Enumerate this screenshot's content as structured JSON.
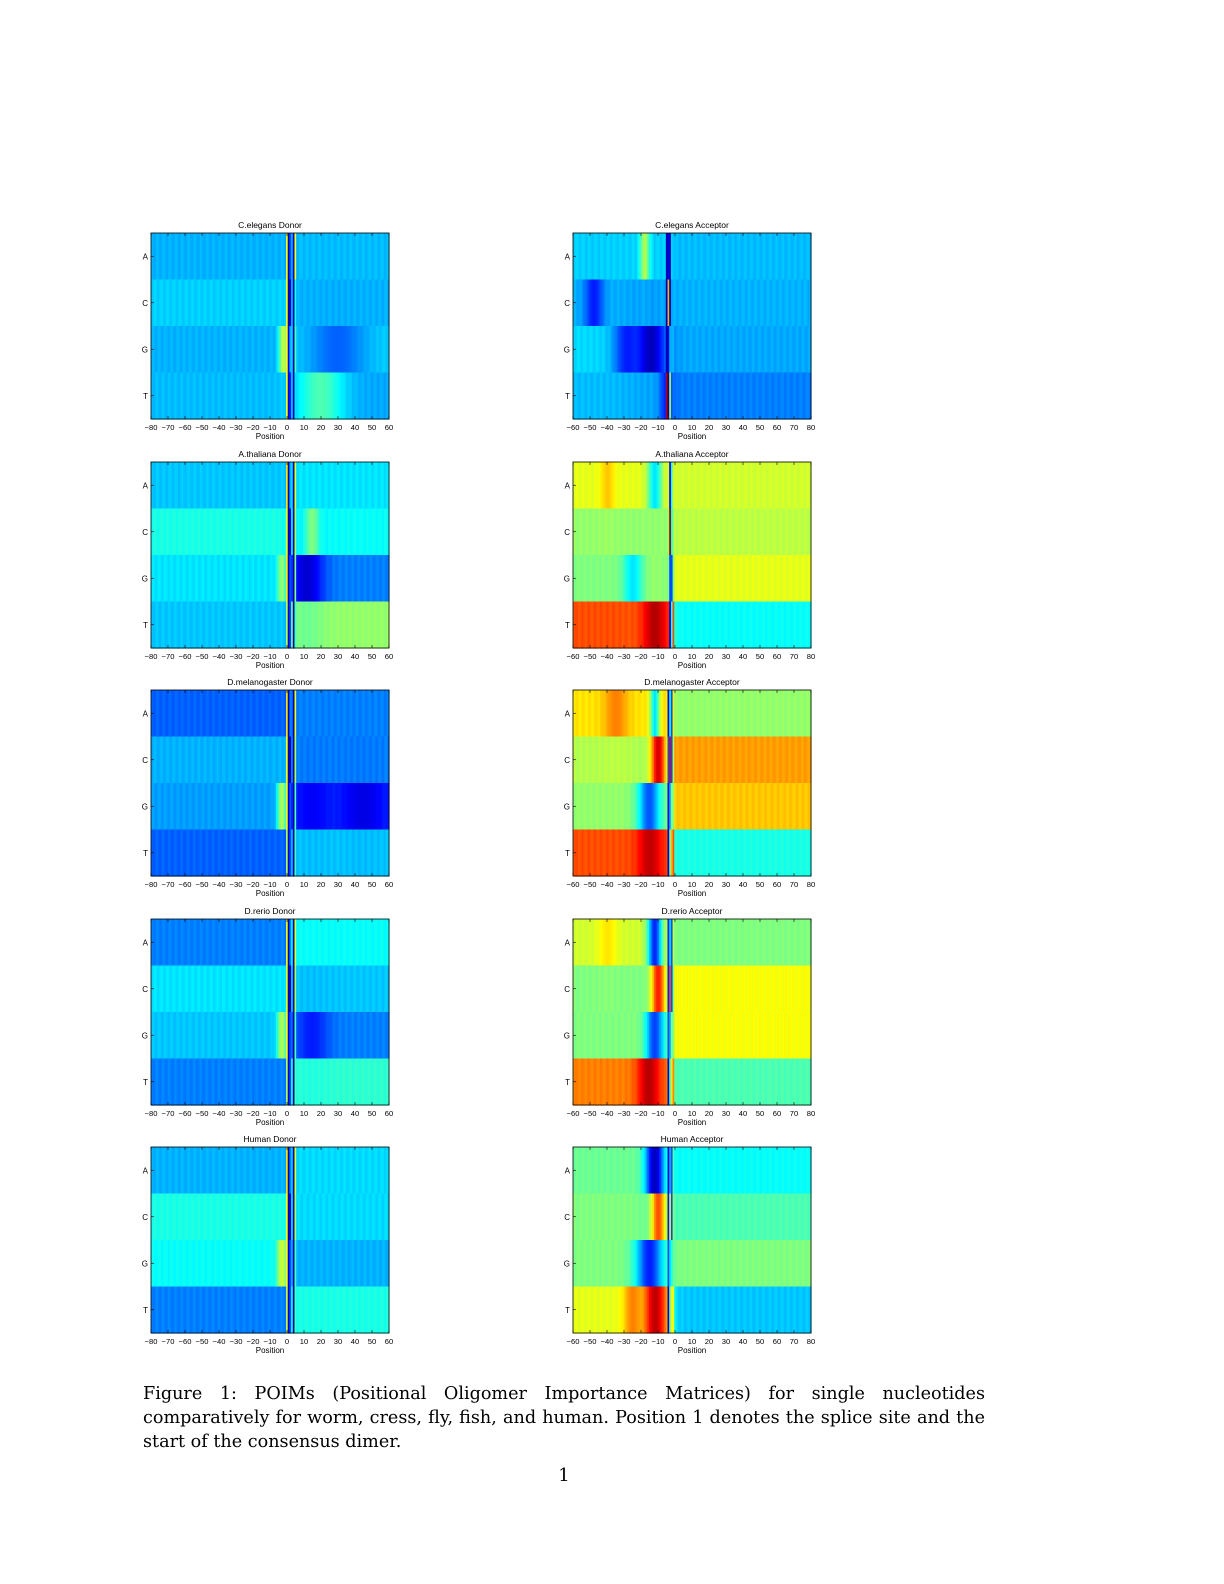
{
  "figure": {
    "caption": "Figure 1: POIMs (Positional Oligomer Importance Matrices) for single nucleotides comparatively for worm, cress, fly, fish, and human.  Position 1 denotes the splice site and the start of the consensus dimer.",
    "page_number": "1"
  },
  "chart_data": [
    {
      "type": "heatmap",
      "title": "C.elegans Donor",
      "xlabel": "Position",
      "ylabel": "",
      "yticks": [
        "A",
        "C",
        "G",
        "T"
      ],
      "xticks": [
        -80,
        -70,
        -60,
        -50,
        -40,
        -30,
        -20,
        -10,
        0,
        10,
        20,
        30,
        40,
        50,
        60
      ],
      "xlim": [
        -80,
        60
      ],
      "base": [
        [
          0.3,
          0.31
        ],
        [
          0.33,
          0.3
        ],
        [
          0.3,
          0.33
        ],
        [
          0.31,
          0.29
        ]
      ],
      "stripes": [
        {
          "x": 0,
          "w": 1,
          "v": [
            0.62,
            0.62,
            0.62,
            0.62
          ]
        },
        {
          "x": 1,
          "w": 1,
          "v": [
            0.05,
            0.05,
            0.12,
            0.1
          ]
        },
        {
          "x": 2,
          "w": 1,
          "v": [
            0.2,
            0.08,
            0.3,
            0.15
          ]
        },
        {
          "x": 4,
          "w": 1,
          "v": [
            0.1,
            0.05,
            0.05,
            0.05
          ]
        },
        {
          "x": 5,
          "w": 1,
          "v": [
            0.62,
            0.4,
            0.45,
            0.35
          ]
        }
      ],
      "blobs": [
        {
          "x": -2,
          "row": 2,
          "v": 0.58,
          "sx": 2,
          "sy": 0.3
        },
        {
          "x": 30,
          "row": 2,
          "v": 0.22,
          "sx": 12,
          "sy": 0.4
        },
        {
          "x": 20,
          "row": 3,
          "v": 0.45,
          "sx": 10,
          "sy": 0.3
        }
      ]
    },
    {
      "type": "heatmap",
      "title": "C.elegans Acceptor",
      "xlabel": "Position",
      "ylabel": "",
      "yticks": [
        "A",
        "C",
        "G",
        "T"
      ],
      "xticks": [
        -60,
        -50,
        -40,
        -30,
        -20,
        -10,
        0,
        10,
        20,
        30,
        40,
        50,
        60,
        70,
        80
      ],
      "xlim": [
        -60,
        80
      ],
      "base": [
        [
          0.33,
          0.31
        ],
        [
          0.3,
          0.3
        ],
        [
          0.34,
          0.29
        ],
        [
          0.31,
          0.25
        ]
      ],
      "stripes": [
        {
          "x": -5,
          "w": 1,
          "v": [
            0.05,
            0.05,
            0.05,
            0.95
          ]
        },
        {
          "x": -4,
          "w": 1,
          "v": [
            0.1,
            0.7,
            0.1,
            0.05
          ]
        },
        {
          "x": -3,
          "w": 1,
          "v": [
            0.05,
            0.05,
            0.3,
            0.55
          ]
        }
      ],
      "blobs": [
        {
          "x": -15,
          "row": 2,
          "v": 0.05,
          "sx": 7,
          "sy": 0.45
        },
        {
          "x": -48,
          "row": 1,
          "v": 0.15,
          "sx": 4,
          "sy": 0.35
        },
        {
          "x": -28,
          "row": 2,
          "v": 0.15,
          "sx": 6,
          "sy": 0.4
        },
        {
          "x": -18,
          "row": 0,
          "v": 0.55,
          "sx": 2,
          "sy": 0.4
        },
        {
          "x": -5,
          "row": 3,
          "v": 0.15,
          "sx": 3,
          "sy": 0.3
        }
      ]
    },
    {
      "type": "heatmap",
      "title": "A.thaliana Donor",
      "xlabel": "Position",
      "ylabel": "",
      "yticks": [
        "A",
        "C",
        "G",
        "T"
      ],
      "xticks": [
        -80,
        -70,
        -60,
        -50,
        -40,
        -30,
        -20,
        -10,
        0,
        10,
        20,
        30,
        40,
        50,
        60
      ],
      "xlim": [
        -80,
        60
      ],
      "base": [
        [
          0.32,
          0.35
        ],
        [
          0.4,
          0.38
        ],
        [
          0.35,
          0.25
        ],
        [
          0.32,
          0.52
        ]
      ],
      "stripes": [
        {
          "x": 0,
          "w": 1,
          "v": [
            0.65,
            0.6,
            0.65,
            0.55
          ]
        },
        {
          "x": 1,
          "w": 1,
          "v": [
            0.05,
            0.05,
            0.08,
            0.08
          ]
        },
        {
          "x": 2,
          "w": 1,
          "v": [
            0.3,
            0.1,
            0.2,
            0.2
          ]
        },
        {
          "x": 4,
          "w": 1,
          "v": [
            0.05,
            0.05,
            0.05,
            0.05
          ]
        },
        {
          "x": 5,
          "w": 1,
          "v": [
            0.6,
            0.55,
            0.5,
            0.45
          ]
        }
      ],
      "blobs": [
        {
          "x": 12,
          "row": 2,
          "v": 0.08,
          "sx": 7,
          "sy": 0.45
        },
        {
          "x": -3,
          "row": 2,
          "v": 0.52,
          "sx": 2,
          "sy": 0.3
        },
        {
          "x": 15,
          "row": 1,
          "v": 0.5,
          "sx": 3,
          "sy": 0.3
        }
      ]
    },
    {
      "type": "heatmap",
      "title": "A.thaliana Acceptor",
      "xlabel": "Position",
      "ylabel": "",
      "yticks": [
        "A",
        "C",
        "G",
        "T"
      ],
      "xticks": [
        -60,
        -50,
        -40,
        -30,
        -20,
        -10,
        0,
        10,
        20,
        30,
        40,
        50,
        60,
        70,
        80
      ],
      "xlim": [
        -60,
        80
      ],
      "base": [
        [
          0.6,
          0.58
        ],
        [
          0.52,
          0.56
        ],
        [
          0.5,
          0.6
        ],
        [
          0.8,
          0.38
        ]
      ],
      "stripes": [
        {
          "x": -3,
          "w": 1,
          "v": [
            0.1,
            0.98,
            0.2,
            0.1
          ]
        },
        {
          "x": -2,
          "w": 1,
          "v": [
            0.4,
            0.4,
            0.2,
            0.4
          ]
        }
      ],
      "blobs": [
        {
          "x": -12,
          "row": 3,
          "v": 0.95,
          "sx": 5,
          "sy": 0.4
        },
        {
          "x": -25,
          "row": 2,
          "v": 0.35,
          "sx": 4,
          "sy": 0.35
        },
        {
          "x": -40,
          "row": 0,
          "v": 0.68,
          "sx": 3,
          "sy": 0.4
        },
        {
          "x": -12,
          "row": 0,
          "v": 0.35,
          "sx": 3,
          "sy": 0.35
        }
      ]
    },
    {
      "type": "heatmap",
      "title": "D.melanogaster Donor",
      "xlabel": "Position",
      "ylabel": "",
      "yticks": [
        "A",
        "C",
        "G",
        "T"
      ],
      "xticks": [
        -80,
        -70,
        -60,
        -50,
        -40,
        -30,
        -20,
        -10,
        0,
        10,
        20,
        30,
        40,
        50,
        60
      ],
      "xlim": [
        -80,
        60
      ],
      "base": [
        [
          0.22,
          0.25
        ],
        [
          0.3,
          0.25
        ],
        [
          0.28,
          0.18
        ],
        [
          0.22,
          0.32
        ]
      ],
      "stripes": [
        {
          "x": 0,
          "w": 1,
          "v": [
            0.65,
            0.62,
            0.62,
            0.55
          ]
        },
        {
          "x": 1,
          "w": 1,
          "v": [
            0.05,
            0.05,
            0.1,
            0.08
          ]
        },
        {
          "x": 2,
          "w": 1,
          "v": [
            0.25,
            0.05,
            0.2,
            0.2
          ]
        },
        {
          "x": 4,
          "w": 1,
          "v": [
            0.05,
            0.05,
            0.05,
            0.05
          ]
        },
        {
          "x": 5,
          "w": 1,
          "v": [
            0.6,
            0.55,
            0.45,
            0.45
          ]
        }
      ],
      "blobs": [
        {
          "x": 45,
          "row": 2,
          "v": 0.1,
          "sx": 10,
          "sy": 0.4
        },
        {
          "x": 15,
          "row": 2,
          "v": 0.12,
          "sx": 8,
          "sy": 0.4
        },
        {
          "x": -3,
          "row": 2,
          "v": 0.55,
          "sx": 2,
          "sy": 0.3
        }
      ]
    },
    {
      "type": "heatmap",
      "title": "D.melanogaster Acceptor",
      "xlabel": "Position",
      "ylabel": "",
      "yticks": [
        "A",
        "C",
        "G",
        "T"
      ],
      "xticks": [
        -60,
        -50,
        -40,
        -30,
        -20,
        -10,
        0,
        10,
        20,
        30,
        40,
        50,
        60,
        70,
        80
      ],
      "xlim": [
        -60,
        80
      ],
      "base": [
        [
          0.65,
          0.52
        ],
        [
          0.55,
          0.72
        ],
        [
          0.52,
          0.68
        ],
        [
          0.8,
          0.4
        ]
      ],
      "stripes": [
        {
          "x": -4,
          "w": 1,
          "v": [
            0.1,
            0.2,
            0.1,
            0.1
          ]
        },
        {
          "x": -3,
          "w": 1,
          "v": [
            0.4,
            0.9,
            0.3,
            0.5
          ]
        },
        {
          "x": -2,
          "w": 1,
          "v": [
            0.2,
            0.2,
            0.5,
            0.7
          ]
        }
      ],
      "blobs": [
        {
          "x": -15,
          "row": 3,
          "v": 0.97,
          "sx": 5,
          "sy": 0.4
        },
        {
          "x": -15,
          "row": 2,
          "v": 0.2,
          "sx": 5,
          "sy": 0.4
        },
        {
          "x": -10,
          "row": 1,
          "v": 0.92,
          "sx": 3,
          "sy": 0.4
        },
        {
          "x": -35,
          "row": 0,
          "v": 0.75,
          "sx": 5,
          "sy": 0.4
        },
        {
          "x": -12,
          "row": 0,
          "v": 0.35,
          "sx": 2,
          "sy": 0.3
        }
      ]
    },
    {
      "type": "heatmap",
      "title": "D.rerio Donor",
      "xlabel": "Position",
      "ylabel": "",
      "yticks": [
        "A",
        "C",
        "G",
        "T"
      ],
      "xticks": [
        -80,
        -70,
        -60,
        -50,
        -40,
        -30,
        -20,
        -10,
        0,
        10,
        20,
        30,
        40,
        50,
        60
      ],
      "xlim": [
        -80,
        60
      ],
      "base": [
        [
          0.25,
          0.38
        ],
        [
          0.35,
          0.32
        ],
        [
          0.32,
          0.25
        ],
        [
          0.25,
          0.42
        ]
      ],
      "stripes": [
        {
          "x": 0,
          "w": 1,
          "v": [
            0.62,
            0.6,
            0.62,
            0.55
          ]
        },
        {
          "x": 1,
          "w": 1,
          "v": [
            0.05,
            0.05,
            0.1,
            0.08
          ]
        },
        {
          "x": 2,
          "w": 1,
          "v": [
            0.25,
            0.05,
            0.2,
            0.2
          ]
        },
        {
          "x": 4,
          "w": 1,
          "v": [
            0.05,
            0.05,
            0.05,
            0.05
          ]
        },
        {
          "x": 5,
          "w": 1,
          "v": [
            0.6,
            0.55,
            0.45,
            0.45
          ]
        }
      ],
      "blobs": [
        {
          "x": 15,
          "row": 2,
          "v": 0.15,
          "sx": 7,
          "sy": 0.4
        },
        {
          "x": -3,
          "row": 2,
          "v": 0.55,
          "sx": 2,
          "sy": 0.3
        }
      ]
    },
    {
      "type": "heatmap",
      "title": "D.rerio Acceptor",
      "xlabel": "Position",
      "ylabel": "",
      "yticks": [
        "A",
        "C",
        "G",
        "T"
      ],
      "xticks": [
        -60,
        -50,
        -40,
        -30,
        -20,
        -10,
        0,
        10,
        20,
        30,
        40,
        50,
        60,
        70,
        80
      ],
      "xlim": [
        -60,
        80
      ],
      "base": [
        [
          0.58,
          0.5
        ],
        [
          0.5,
          0.62
        ],
        [
          0.5,
          0.62
        ],
        [
          0.75,
          0.45
        ]
      ],
      "stripes": [
        {
          "x": -4,
          "w": 1,
          "v": [
            0.15,
            0.15,
            0.2,
            0.1
          ]
        },
        {
          "x": -3,
          "w": 1,
          "v": [
            0.35,
            0.8,
            0.3,
            0.45
          ]
        },
        {
          "x": -2,
          "w": 1,
          "v": [
            0.2,
            0.2,
            0.5,
            0.65
          ]
        }
      ],
      "blobs": [
        {
          "x": -15,
          "row": 3,
          "v": 0.97,
          "sx": 5,
          "sy": 0.4
        },
        {
          "x": -12,
          "row": 2,
          "v": 0.18,
          "sx": 4,
          "sy": 0.4
        },
        {
          "x": -12,
          "row": 0,
          "v": 0.15,
          "sx": 3,
          "sy": 0.4
        },
        {
          "x": -10,
          "row": 1,
          "v": 0.85,
          "sx": 3,
          "sy": 0.35
        },
        {
          "x": -40,
          "row": 0,
          "v": 0.65,
          "sx": 4,
          "sy": 0.4
        }
      ]
    },
    {
      "type": "heatmap",
      "title": "Human Donor",
      "xlabel": "Position",
      "ylabel": "",
      "yticks": [
        "A",
        "C",
        "G",
        "T"
      ],
      "xticks": [
        -80,
        -70,
        -60,
        -50,
        -40,
        -30,
        -20,
        -10,
        0,
        10,
        20,
        30,
        40,
        50,
        60
      ],
      "xlim": [
        -80,
        60
      ],
      "base": [
        [
          0.3,
          0.34
        ],
        [
          0.4,
          0.34
        ],
        [
          0.38,
          0.3
        ],
        [
          0.25,
          0.4
        ]
      ],
      "stripes": [
        {
          "x": 0,
          "w": 1,
          "v": [
            0.65,
            0.62,
            0.62,
            0.58
          ]
        },
        {
          "x": 1,
          "w": 1,
          "v": [
            0.05,
            0.05,
            0.1,
            0.08
          ]
        },
        {
          "x": 2,
          "w": 1,
          "v": [
            0.25,
            0.08,
            0.2,
            0.2
          ]
        },
        {
          "x": 4,
          "w": 1,
          "v": [
            0.05,
            0.05,
            0.05,
            0.05
          ]
        },
        {
          "x": 5,
          "w": 1,
          "v": [
            0.6,
            0.55,
            0.45,
            0.45
          ]
        }
      ],
      "blobs": [
        {
          "x": -3,
          "row": 2,
          "v": 0.58,
          "sx": 2,
          "sy": 0.3
        }
      ]
    },
    {
      "type": "heatmap",
      "title": "Human Acceptor",
      "xlabel": "Position",
      "ylabel": "",
      "yticks": [
        "A",
        "C",
        "G",
        "T"
      ],
      "xticks": [
        -60,
        -50,
        -40,
        -30,
        -20,
        -10,
        0,
        10,
        20,
        30,
        40,
        50,
        60,
        70,
        80
      ],
      "xlim": [
        -60,
        80
      ],
      "base": [
        [
          0.48,
          0.38
        ],
        [
          0.5,
          0.45
        ],
        [
          0.5,
          0.5
        ],
        [
          0.6,
          0.32
        ]
      ],
      "stripes": [
        {
          "x": -4,
          "w": 1,
          "v": [
            0.1,
            0.15,
            0.2,
            0.1
          ]
        },
        {
          "x": -3,
          "w": 1,
          "v": [
            0.3,
            0.6,
            0.35,
            0.5
          ]
        },
        {
          "x": -2,
          "w": 1,
          "v": [
            0.2,
            0.2,
            0.4,
            0.6
          ]
        }
      ],
      "blobs": [
        {
          "x": -12,
          "row": 3,
          "v": 0.97,
          "sx": 5,
          "sy": 0.4
        },
        {
          "x": -12,
          "row": 0,
          "v": 0.05,
          "sx": 4,
          "sy": 0.45
        },
        {
          "x": -15,
          "row": 2,
          "v": 0.15,
          "sx": 6,
          "sy": 0.4
        },
        {
          "x": -10,
          "row": 1,
          "v": 0.8,
          "sx": 3,
          "sy": 0.35
        },
        {
          "x": -25,
          "row": 3,
          "v": 0.75,
          "sx": 4,
          "sy": 0.35
        }
      ]
    }
  ]
}
